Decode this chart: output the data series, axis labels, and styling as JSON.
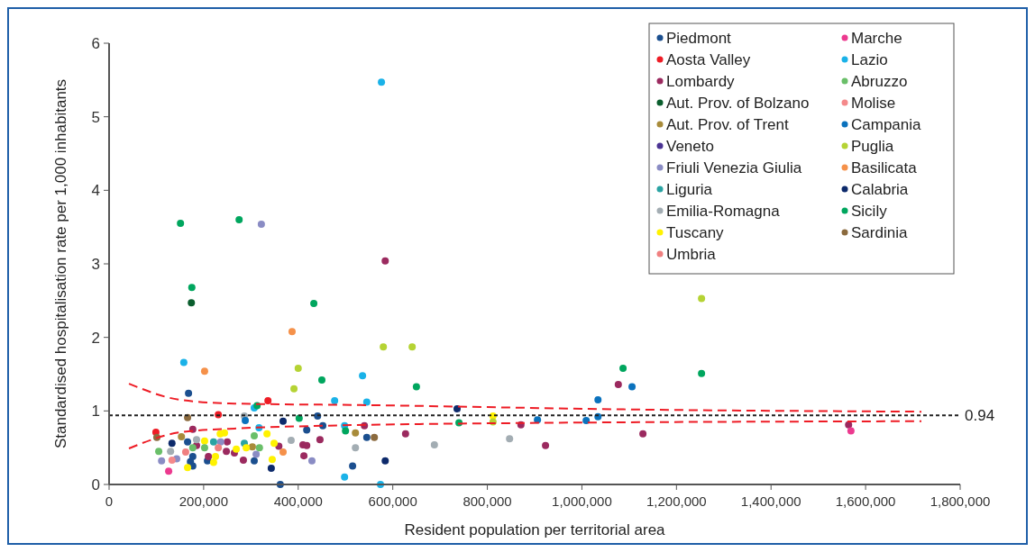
{
  "chart_data": {
    "type": "scatter",
    "xlabel": "Resident population per territorial area",
    "ylabel": "Standardised hospitalisation rate per 1,000 inhabitants",
    "xlim": [
      0,
      1800000
    ],
    "ylim": [
      0,
      6
    ],
    "xticks": [
      0,
      {
        "value": 200000,
        "label": "200,000"
      },
      {
        "value": 400000,
        "label": "400,000"
      },
      {
        "value": 600000,
        "label": "600,000"
      },
      {
        "value": 800000,
        "label": "800,000"
      },
      {
        "value": 1000000,
        "label": "1,000,000"
      },
      {
        "value": 1200000,
        "label": "1,200,000"
      },
      {
        "value": 1400000,
        "label": "1,400,000"
      },
      {
        "value": 1600000,
        "label": "1,600,000"
      },
      {
        "value": 1800000,
        "label": "1,800,000"
      }
    ],
    "yticks": [
      0,
      1,
      2,
      3,
      4,
      5,
      6
    ],
    "grid": false,
    "legend": "top right",
    "marker": "circle",
    "ref_lines": [
      {
        "axis": "y",
        "value": 0.94,
        "label": "0.94",
        "color": "#222222",
        "line_style": "dotted"
      }
    ],
    "series": [
      {
        "name": "Piedmont",
        "color": "#1b4f8f",
        "x": [
          168000,
          418000,
          441000,
          452000,
          166000,
          172000,
          177000,
          177000,
          208000,
          307000,
          362000,
          545000,
          515000
        ],
        "values": [
          1.24,
          0.74,
          0.93,
          0.8,
          0.58,
          0.31,
          0.25,
          0.38,
          0.32,
          0.32,
          0,
          0.64,
          0.25
        ]
      },
      {
        "name": "Aosta Valley",
        "color": "#ee1c25",
        "x": [
          99000,
          231000,
          336000
        ],
        "values": [
          0.71,
          0.95,
          1.14
        ]
      },
      {
        "name": "Lombardy",
        "color": "#9b2a5f",
        "x": [
          177000,
          185000,
          250000,
          248000,
          265000,
          284000,
          359000,
          410000,
          418000,
          412000,
          446000,
          540000,
          627000,
          871000,
          923000,
          1077000,
          1129000,
          1564000,
          210000,
          584000
        ],
        "values": [
          0.75,
          0.53,
          0.58,
          0.45,
          0.43,
          0.33,
          0.52,
          0.54,
          0.53,
          0.39,
          0.61,
          0.8,
          0.69,
          0.81,
          0.53,
          1.36,
          0.69,
          0.81,
          0.38,
          3.04
        ]
      },
      {
        "name": "Aut. Prov. of Bolzano",
        "color": "#0b5e2e",
        "x": [
          174000
        ],
        "values": [
          2.47
        ]
      },
      {
        "name": "Aut. Prov. of Trent",
        "color": "#a88b3a",
        "x": [
          153000,
          303000,
          521000
        ],
        "values": [
          0.65,
          0.51,
          0.7
        ]
      },
      {
        "name": "Veneto",
        "color": "#4b3393"
      },
      {
        "name": "Friuli Venezia Giulia",
        "color": "#8a8cc4",
        "x": [
          236000,
          143000,
          111000,
          311000,
          429000,
          322000
        ],
        "values": [
          0.58,
          0.35,
          0.32,
          0.41,
          0.32,
          3.54
        ]
      },
      {
        "name": "Liguria",
        "color": "#2aa3a3",
        "x": [
          221000,
          286000
        ],
        "values": [
          0.58,
          0.56
        ]
      },
      {
        "name": "Emilia-Romagna",
        "color": "#a3adb3",
        "x": [
          185000,
          130000,
          286000,
          385000,
          521000,
          688000,
          847000
        ],
        "values": [
          0.61,
          0.45,
          0.93,
          0.6,
          0.5,
          0.54,
          0.62
        ]
      },
      {
        "name": "Tuscany",
        "color": "#fff200",
        "x": [
          235000,
          244000,
          334000,
          202000,
          290000,
          349000,
          166000,
          221000,
          225000,
          269000,
          345000,
          812000
        ],
        "values": [
          0.69,
          0.7,
          0.69,
          0.59,
          0.5,
          0.56,
          0.23,
          0.3,
          0.38,
          0.48,
          0.34,
          0.93
        ]
      },
      {
        "name": "Umbria",
        "color": "#f08080",
        "x": [
          231000,
          162000
        ],
        "values": [
          0.5,
          0.44
        ]
      },
      {
        "name": "Marche",
        "color": "#ec3a8f",
        "x": [
          126000,
          1569000
        ],
        "values": [
          0.18,
          0.73
        ]
      },
      {
        "name": "Lazio",
        "color": "#1ab2e8",
        "x": [
          158000,
          307000,
          317000,
          477000,
          536000,
          545000,
          498000,
          498000,
          574000,
          576000
        ],
        "values": [
          1.66,
          1.04,
          0.77,
          1.14,
          1.48,
          1.12,
          0.8,
          0.1,
          0,
          5.47
        ]
      },
      {
        "name": "Abruzzo",
        "color": "#6abf69",
        "x": [
          307000,
          202000,
          318000,
          105000,
          177000
        ],
        "values": [
          0.66,
          0.5,
          0.5,
          0.45,
          0.5
        ]
      },
      {
        "name": "Molise",
        "color": "#f4898b",
        "x": [
          133000
        ],
        "values": [
          0.33
        ]
      },
      {
        "name": "Campania",
        "color": "#0b72bd",
        "x": [
          288000,
          906000,
          1009000,
          1034000,
          1034000,
          1106000
        ],
        "values": [
          0.87,
          0.88,
          0.87,
          0.92,
          1.15,
          1.33
        ]
      },
      {
        "name": "Puglia",
        "color": "#b5d334",
        "x": [
          400000,
          391000,
          580000,
          641000,
          812000,
          1253000
        ],
        "values": [
          1.58,
          1.3,
          1.87,
          1.87,
          0.85,
          2.53
        ]
      },
      {
        "name": "Basilicata",
        "color": "#f5914a",
        "x": [
          202000,
          387000,
          368000
        ],
        "values": [
          1.54,
          2.08,
          0.44
        ]
      },
      {
        "name": "Calabria",
        "color": "#0d2a6b",
        "x": [
          133000,
          368000,
          343000,
          584000,
          736000
        ],
        "values": [
          0.56,
          0.86,
          0.22,
          0.32,
          1.03
        ]
      },
      {
        "name": "Sicily",
        "color": "#00a65e",
        "x": [
          175000,
          433000,
          313000,
          402000,
          450000,
          500000,
          650000,
          740000,
          1087000,
          1253000,
          151000,
          275000
        ],
        "values": [
          2.68,
          2.46,
          1.07,
          0.9,
          1.42,
          0.73,
          1.33,
          0.84,
          1.58,
          1.51,
          3.55,
          3.6
        ]
      },
      {
        "name": "Sardinia",
        "color": "#8b6a3e",
        "x": [
          166000,
          101000,
          561000
        ],
        "values": [
          0.91,
          0.64,
          0.64
        ]
      },
      {
        "type": "line",
        "marker": "none",
        "color": "#ee1c25",
        "line_style": "dashed",
        "x": [
          42000,
          151000,
          265000,
          532000,
          1104000,
          1718000
        ],
        "values": [
          1.37,
          1.15,
          1.1,
          1.08,
          1.02,
          0.99
        ]
      },
      {
        "type": "line",
        "marker": "none",
        "color": "#ee1c25",
        "line_style": "dashed",
        "x": [
          42000,
          151000,
          265000,
          461000,
          780000,
          1718000
        ],
        "values": [
          0.49,
          0.71,
          0.76,
          0.8,
          0.83,
          0.86
        ]
      }
    ]
  }
}
